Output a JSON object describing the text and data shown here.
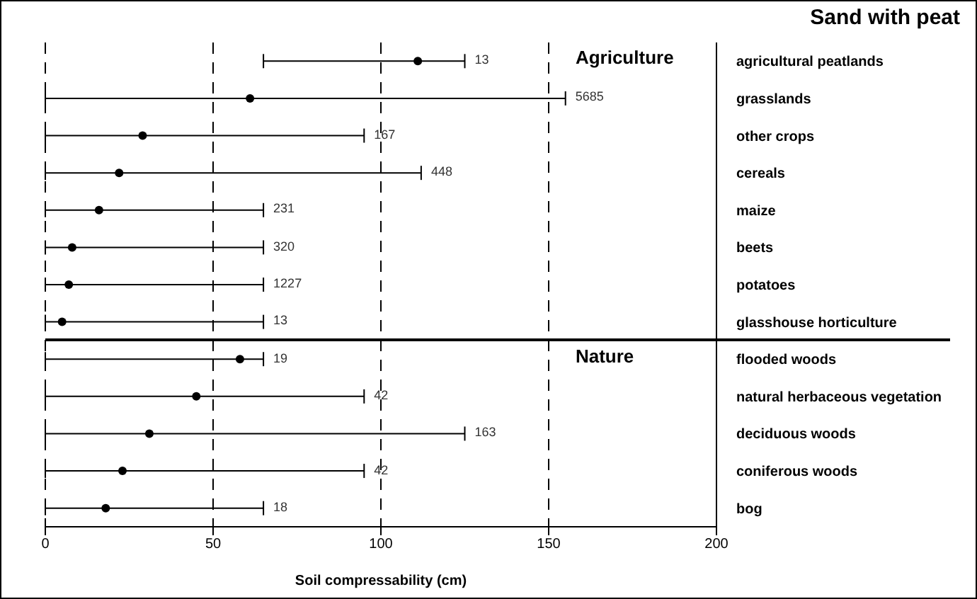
{
  "chart_data": {
    "type": "scatter",
    "orientation": "horizontal",
    "title": "Sand with peat",
    "xlabel": "Soil compressability (cm)",
    "categories": [
      "agricultural peatlands",
      "grasslands",
      "other crops",
      "cereals",
      "maize",
      "beets",
      "potatoes",
      "glasshouse horticulture",
      "flooded woods",
      "natural herbaceous vegetation",
      "deciduous woods",
      "coniferous woods",
      "bog"
    ],
    "series": [
      {
        "color": "#000000",
        "values": [
          111,
          61,
          29,
          22,
          16,
          8,
          7,
          5,
          58,
          45,
          31,
          23,
          18
        ],
        "errors": [
          [
            65,
            125
          ],
          [
            0,
            155
          ],
          [
            0,
            95
          ],
          [
            0,
            112
          ],
          [
            0,
            65
          ],
          [
            0,
            65
          ],
          [
            0,
            65
          ],
          [
            0,
            65
          ],
          [
            0,
            65
          ],
          [
            0,
            95
          ],
          [
            0,
            125
          ],
          [
            0,
            95
          ],
          [
            0,
            65
          ]
        ]
      }
    ],
    "xlim": [
      0,
      200
    ],
    "xticks": [
      0,
      50,
      100,
      150,
      200
    ],
    "grid": "x",
    "marker": "circle",
    "ref_lines": [
      {
        "axis": "y",
        "value": "flooded woods",
        "color": "#000000"
      }
    ],
    "annotations": [
      "Agriculture",
      "Nature",
      "13",
      "5685",
      "167",
      "448",
      "231",
      "320",
      "1227",
      "13",
      "19",
      "42",
      "163",
      "42",
      "18"
    ]
  }
}
